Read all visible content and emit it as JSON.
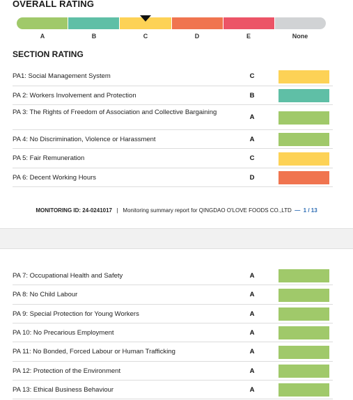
{
  "overall": {
    "heading": "OVERALL RATING",
    "scale": [
      {
        "label": "A",
        "color": "#a0c96a"
      },
      {
        "label": "B",
        "color": "#5fbfa6"
      },
      {
        "label": "C",
        "color": "#fdd256"
      },
      {
        "label": "D",
        "color": "#f0744f"
      },
      {
        "label": "E",
        "color": "#ec5467"
      },
      {
        "label": "None",
        "color": "#d1d3d5"
      }
    ],
    "selected": "C"
  },
  "section": {
    "heading": "SECTION RATING",
    "items": [
      {
        "label": "PA1: Social Management System",
        "grade": "C",
        "color": "#fdd256"
      },
      {
        "label": "PA 2: Workers Involvement and Protection",
        "grade": "B",
        "color": "#5fbfa6"
      },
      {
        "label": "PA 3: The Rights of Freedom of Association and Collective Bargaining",
        "grade": "A",
        "color": "#a0c96a"
      },
      {
        "label": "PA 4: No Discrimination, Violence or Harassment",
        "grade": "A",
        "color": "#a0c96a"
      },
      {
        "label": "PA 5: Fair Remuneration",
        "grade": "C",
        "color": "#fdd256"
      },
      {
        "label": "PA 6: Decent Working Hours",
        "grade": "D",
        "color": "#f0744f"
      },
      {
        "label": "PA 7: Occupational Health and Safety",
        "grade": "A",
        "color": "#a0c96a"
      },
      {
        "label": "PA 8: No Child Labour",
        "grade": "A",
        "color": "#a0c96a"
      },
      {
        "label": "PA 9: Special Protection for Young Workers",
        "grade": "A",
        "color": "#a0c96a"
      },
      {
        "label": "PA 10: No Precarious Employment",
        "grade": "A",
        "color": "#a0c96a"
      },
      {
        "label": "PA 11: No Bonded, Forced Labour or Human Trafficking",
        "grade": "A",
        "color": "#a0c96a"
      },
      {
        "label": "PA 12: Protection of the Environment",
        "grade": "A",
        "color": "#a0c96a"
      },
      {
        "label": "PA 13: Ethical Business Behaviour",
        "grade": "A",
        "color": "#a0c96a"
      }
    ]
  },
  "footer": {
    "monitoring_id": "MONITORING ID: 24-0241017",
    "separator": "|",
    "report_title": "Monitoring summary report for QINGDAO O'LOVE FOODS CO.,LTD",
    "dash": "—",
    "page": "1 / 13"
  }
}
